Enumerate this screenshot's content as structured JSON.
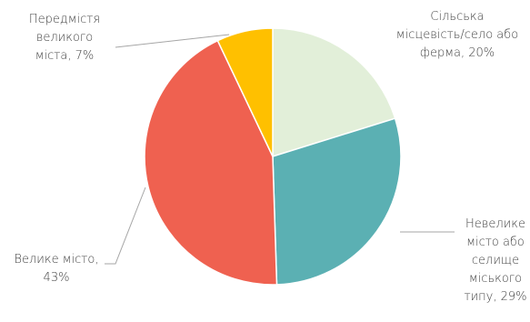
{
  "chart_data": {
    "type": "pie",
    "title": "",
    "slices": [
      {
        "category": "Сільська місцевість/село або ферма",
        "value": 20,
        "value_label": "20%",
        "color": "#e2efd9",
        "label_lines": [
          "Сільська",
          "місцевість/село або",
          "ферма, 20%"
        ]
      },
      {
        "category": "Невелике місто або селище міського типу",
        "value": 29,
        "value_label": "29%",
        "color": "#5bb0b3",
        "label_lines": [
          "Невелике",
          "місто або",
          "селище",
          "міського",
          "типу, 29%"
        ]
      },
      {
        "category": "Велике місто",
        "value": 43,
        "value_label": "43%",
        "color": "#ef6150",
        "label_lines": [
          "Велике місто,",
          "43%"
        ]
      },
      {
        "category": "Передмістя великого міста",
        "value": 7,
        "value_label": "7%",
        "color": "#ffc000",
        "label_lines": [
          "Передмістя",
          "великого",
          "міста, 7%"
        ]
      }
    ]
  }
}
